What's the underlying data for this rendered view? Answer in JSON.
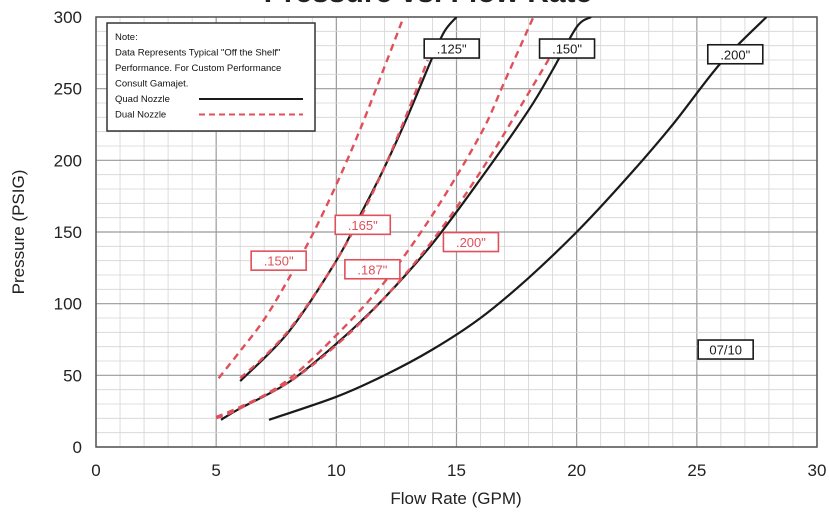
{
  "chart_data": {
    "type": "line",
    "title": "Pressure vs. Flow Rate",
    "xlabel": "Flow Rate (GPM)",
    "ylabel": "Pressure (PSIG)",
    "xlim": [
      0,
      30
    ],
    "ylim": [
      0,
      300
    ],
    "x_ticks": [
      "0",
      "5",
      "10",
      "15",
      "20",
      "25",
      "30"
    ],
    "y_ticks": [
      "0",
      "50",
      "100",
      "150",
      "200",
      "250",
      "300"
    ],
    "grid": true,
    "legend_position": "top-left",
    "colors": {
      "quad": "#1a1a1a",
      "dual": "#e0505a"
    },
    "legend": {
      "note_lines": [
        "Note:",
        "Data Represents Typical \"Off the Shelf\"",
        "Performance. For Custom Performance",
        "Consult Gamajet."
      ],
      "entries": [
        {
          "label": "Quad Nozzle",
          "style": "solid",
          "color": "#1a1a1a"
        },
        {
          "label": "Dual Nozzle",
          "style": "dashed",
          "color": "#e0505a"
        }
      ]
    },
    "series": [
      {
        "name": ".125\"",
        "group": "quad",
        "style": "solid",
        "color": "#1a1a1a",
        "x": [
          6.0,
          8.0,
          10.0,
          11.0,
          12.0,
          13.0,
          14.0,
          14.5,
          15.0
        ],
        "y": [
          46,
          80,
          130,
          162,
          195,
          232,
          272,
          290,
          300
        ]
      },
      {
        "name": ".150\"",
        "group": "quad",
        "style": "solid",
        "color": "#1a1a1a",
        "x": [
          5.2,
          6,
          8,
          10,
          12,
          14,
          16,
          18,
          19,
          20,
          20.6
        ],
        "y": [
          19,
          27,
          45,
          72,
          104,
          142,
          187,
          235,
          263,
          293,
          300
        ]
      },
      {
        "name": ".200\"",
        "group": "quad",
        "style": "solid",
        "color": "#1a1a1a",
        "x": [
          7.2,
          10,
          12,
          14,
          16,
          18,
          20,
          22,
          24,
          26,
          27.9
        ],
        "y": [
          19,
          35,
          50,
          68,
          90,
          118,
          150,
          186,
          225,
          268,
          300
        ]
      },
      {
        "name": ".150\"",
        "group": "dual",
        "style": "dashed",
        "color": "#e0505a",
        "x": [
          5.1,
          6,
          7,
          8,
          9,
          10,
          11,
          12,
          12.8
        ],
        "y": [
          48,
          67,
          89,
          117,
          148,
          183,
          222,
          265,
          300
        ]
      },
      {
        "name": ".165\"",
        "group": "dual",
        "style": "dashed",
        "color": "#e0505a",
        "x": [
          6.0,
          7,
          8,
          9,
          10,
          11,
          12,
          13,
          13.8
        ],
        "y": [
          48,
          63,
          81,
          104,
          130,
          160,
          195,
          235,
          270
        ]
      },
      {
        "name": ".187\"",
        "group": "dual",
        "style": "dashed",
        "color": "#e0505a",
        "x": [
          5.0,
          6,
          8,
          10,
          12,
          14,
          16,
          17,
          18.2
        ],
        "y": [
          20,
          27,
          47,
          78,
          115,
          162,
          218,
          255,
          300
        ]
      },
      {
        "name": ".200\"",
        "group": "dual",
        "style": "dashed",
        "color": "#e0505a",
        "x": [
          5.0,
          6,
          8,
          10,
          12,
          14,
          16,
          18,
          19.0
        ],
        "y": [
          21,
          28,
          45,
          71,
          104,
          144,
          192,
          247,
          275
        ]
      }
    ],
    "annotations": [
      {
        "text": ".125\"",
        "x": 14.8,
        "y": 278,
        "color": "#1a1a1a"
      },
      {
        "text": ".150\"",
        "x": 19.6,
        "y": 278,
        "color": "#1a1a1a"
      },
      {
        "text": ".200\"",
        "x": 26.6,
        "y": 274,
        "color": "#1a1a1a"
      },
      {
        "text": ".165\"",
        "x": 11.1,
        "y": 155,
        "color": "#e0505a"
      },
      {
        "text": ".150\"",
        "x": 7.6,
        "y": 130,
        "color": "#e0505a"
      },
      {
        "text": ".187\"",
        "x": 11.5,
        "y": 124,
        "color": "#e0505a"
      },
      {
        "text": ".200\"",
        "x": 15.6,
        "y": 143,
        "color": "#e0505a"
      },
      {
        "text": "07/10",
        "x": 26.2,
        "y": 68,
        "color": "#1a1a1a"
      }
    ]
  }
}
